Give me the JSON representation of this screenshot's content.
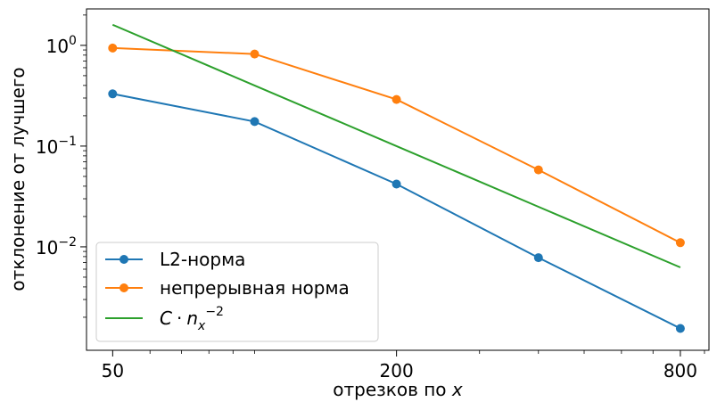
{
  "chart_data": {
    "type": "line",
    "xscale": "log",
    "yscale": "log",
    "x": [
      50,
      100,
      200,
      400,
      800
    ],
    "xlim": [
      44,
      920
    ],
    "ylim": [
      0.00094,
      2.3
    ],
    "xticks": [
      50,
      200,
      800
    ],
    "xtick_labels": [
      "50",
      "200",
      "800"
    ],
    "yticks": [
      1,
      0.1,
      0.01
    ],
    "ytick_labels": [
      {
        "base": "10",
        "exp": "0"
      },
      {
        "base": "10",
        "exp": "−1"
      },
      {
        "base": "10",
        "exp": "−2"
      }
    ],
    "xlabel": {
      "text": "отрезков по ",
      "var": "x"
    },
    "ylabel": "отклонение от лучшего",
    "grid": false,
    "legend_position": "lower-left",
    "series": [
      {
        "name": "L2-норма",
        "color": "#1f77b4",
        "marker": "circle",
        "values": [
          0.33,
          0.175,
          0.042,
          0.0078,
          0.00155
        ]
      },
      {
        "name": "непрерывная норма",
        "color": "#ff7f0e",
        "marker": "circle",
        "values": [
          0.94,
          0.82,
          0.29,
          0.058,
          0.011
        ]
      },
      {
        "name": "C · n_x^−2",
        "color": "#2ca02c",
        "marker": "none",
        "values": [
          1.6,
          0.4,
          0.1,
          0.025,
          0.00625
        ]
      }
    ],
    "legend_labels": {
      "s0": "L2-норма",
      "s1": "непрерывная норма",
      "s2": {
        "C": "C",
        "dot": "·",
        "n": "n",
        "sub": "x",
        "sup": "−2"
      }
    }
  }
}
